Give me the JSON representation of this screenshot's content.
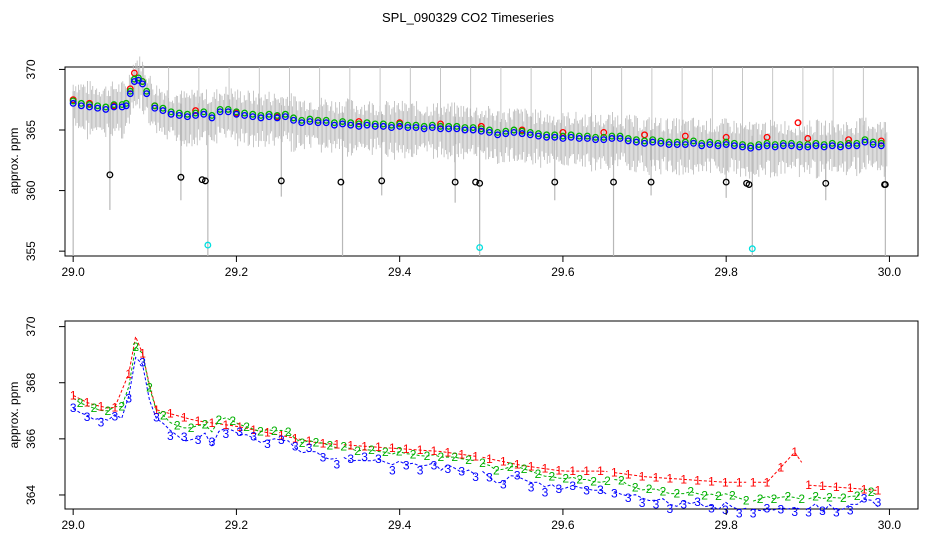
{
  "title": "SPL_090329  CO2 Timeseries",
  "colors": {
    "grey": "#b8b8b8",
    "black": "#000000",
    "red": "#ff0000",
    "green": "#00b000",
    "blue": "#0000ff",
    "cyan": "#00e0e0"
  },
  "chart_data": [
    {
      "type": "scatter",
      "ylabel": "approx. ppm",
      "xlim": [
        28.99,
        30.035
      ],
      "ylim": [
        354.6,
        370.2
      ],
      "xticks": [
        29.0,
        29.2,
        29.4,
        29.6,
        29.8,
        30.0
      ],
      "xtick_labels": [
        "29.0",
        "29.2",
        "29.4",
        "29.6",
        "29.8",
        "30.0"
      ],
      "yticks": [
        355,
        360,
        365,
        370
      ],
      "ytick_labels": [
        "355",
        "360",
        "365",
        "370"
      ],
      "series": [
        {
          "name": "grey band (high-rate data)",
          "color": "grey"
        },
        {
          "name": "black",
          "color": "black",
          "marker": "circle"
        },
        {
          "name": "red",
          "color": "red",
          "marker": "circle"
        },
        {
          "name": "green",
          "color": "green",
          "marker": "circle"
        },
        {
          "name": "blue",
          "color": "blue",
          "marker": "circle"
        },
        {
          "name": "cyan",
          "color": "cyan",
          "marker": "circle"
        }
      ],
      "black_points": [
        [
          29.045,
          361.3
        ],
        [
          29.132,
          361.1
        ],
        [
          29.158,
          360.9
        ],
        [
          29.162,
          360.8
        ],
        [
          29.255,
          360.8
        ],
        [
          29.328,
          360.7
        ],
        [
          29.378,
          360.8
        ],
        [
          29.468,
          360.7
        ],
        [
          29.493,
          360.7
        ],
        [
          29.498,
          360.6
        ],
        [
          29.59,
          360.7
        ],
        [
          29.662,
          360.7
        ],
        [
          29.708,
          360.7
        ],
        [
          29.8,
          360.7
        ],
        [
          29.825,
          360.6
        ],
        [
          29.828,
          360.5
        ],
        [
          29.922,
          360.6
        ],
        [
          29.994,
          360.5
        ],
        [
          29.995,
          360.5
        ]
      ],
      "cyan_points": [
        [
          29.165,
          355.5
        ],
        [
          29.498,
          355.3
        ],
        [
          29.832,
          355.2
        ]
      ],
      "red_points": [
        [
          29.0,
          367.5
        ],
        [
          29.02,
          367.2
        ],
        [
          29.05,
          367.0
        ],
        [
          29.07,
          368.4
        ],
        [
          29.075,
          369.7
        ],
        [
          29.085,
          369.0
        ],
        [
          29.1,
          367.0
        ],
        [
          29.15,
          366.6
        ],
        [
          29.2,
          366.4
        ],
        [
          29.25,
          366.1
        ],
        [
          29.3,
          365.8
        ],
        [
          29.35,
          365.7
        ],
        [
          29.4,
          365.6
        ],
        [
          29.45,
          365.5
        ],
        [
          29.5,
          365.3
        ],
        [
          29.55,
          365.0
        ],
        [
          29.6,
          364.8
        ],
        [
          29.65,
          364.8
        ],
        [
          29.7,
          364.6
        ],
        [
          29.75,
          364.5
        ],
        [
          29.8,
          364.4
        ],
        [
          29.85,
          364.4
        ],
        [
          29.888,
          365.6
        ],
        [
          29.9,
          364.3
        ],
        [
          29.95,
          364.2
        ],
        [
          29.99,
          364.1
        ]
      ],
      "blue_points": [
        [
          29.0,
          367.2
        ],
        [
          29.01,
          367.0
        ],
        [
          29.02,
          366.9
        ],
        [
          29.03,
          366.8
        ],
        [
          29.04,
          366.7
        ],
        [
          29.05,
          366.9
        ],
        [
          29.06,
          366.9
        ],
        [
          29.065,
          367.0
        ],
        [
          29.07,
          368.0
        ],
        [
          29.075,
          369.0
        ],
        [
          29.08,
          369.1
        ],
        [
          29.085,
          368.8
        ],
        [
          29.09,
          368.0
        ],
        [
          29.1,
          366.8
        ],
        [
          29.11,
          366.6
        ],
        [
          29.12,
          366.3
        ],
        [
          29.13,
          366.2
        ],
        [
          29.14,
          366.1
        ],
        [
          29.15,
          366.2
        ],
        [
          29.16,
          366.3
        ],
        [
          29.17,
          366.0
        ],
        [
          29.18,
          366.5
        ],
        [
          29.19,
          366.5
        ],
        [
          29.2,
          366.3
        ],
        [
          29.21,
          366.2
        ],
        [
          29.22,
          366.1
        ],
        [
          29.23,
          366.0
        ],
        [
          29.24,
          366.1
        ],
        [
          29.25,
          366.0
        ],
        [
          29.26,
          366.1
        ],
        [
          29.27,
          365.8
        ],
        [
          29.28,
          365.6
        ],
        [
          29.29,
          365.7
        ],
        [
          29.3,
          365.6
        ],
        [
          29.31,
          365.6
        ],
        [
          29.32,
          365.4
        ],
        [
          29.33,
          365.5
        ],
        [
          29.34,
          365.4
        ],
        [
          29.35,
          365.3
        ],
        [
          29.36,
          365.4
        ],
        [
          29.37,
          365.3
        ],
        [
          29.38,
          365.3
        ],
        [
          29.39,
          365.2
        ],
        [
          29.4,
          365.3
        ],
        [
          29.41,
          365.2
        ],
        [
          29.42,
          365.2
        ],
        [
          29.43,
          365.1
        ],
        [
          29.44,
          365.2
        ],
        [
          29.45,
          365.1
        ],
        [
          29.46,
          365.1
        ],
        [
          29.47,
          365.1
        ],
        [
          29.48,
          365.0
        ],
        [
          29.49,
          365.0
        ],
        [
          29.5,
          364.9
        ],
        [
          29.51,
          364.8
        ],
        [
          29.52,
          364.6
        ],
        [
          29.53,
          364.7
        ],
        [
          29.54,
          364.8
        ],
        [
          29.55,
          364.7
        ],
        [
          29.56,
          364.6
        ],
        [
          29.57,
          364.5
        ],
        [
          29.58,
          364.4
        ],
        [
          29.59,
          364.4
        ],
        [
          29.6,
          364.3
        ],
        [
          29.61,
          364.4
        ],
        [
          29.62,
          364.3
        ],
        [
          29.63,
          364.3
        ],
        [
          29.64,
          364.2
        ],
        [
          29.65,
          364.2
        ],
        [
          29.66,
          364.3
        ],
        [
          29.67,
          364.3
        ],
        [
          29.68,
          364.1
        ],
        [
          29.69,
          364.0
        ],
        [
          29.7,
          363.9
        ],
        [
          29.71,
          364.0
        ],
        [
          29.72,
          363.9
        ],
        [
          29.73,
          363.8
        ],
        [
          29.74,
          363.8
        ],
        [
          29.75,
          363.8
        ],
        [
          29.76,
          363.9
        ],
        [
          29.77,
          363.7
        ],
        [
          29.78,
          363.8
        ],
        [
          29.79,
          363.7
        ],
        [
          29.8,
          363.8
        ],
        [
          29.81,
          363.7
        ],
        [
          29.82,
          363.6
        ],
        [
          29.83,
          363.5
        ],
        [
          29.84,
          363.6
        ],
        [
          29.85,
          363.7
        ],
        [
          29.86,
          363.6
        ],
        [
          29.87,
          363.7
        ],
        [
          29.88,
          363.7
        ],
        [
          29.89,
          363.6
        ],
        [
          29.9,
          363.6
        ],
        [
          29.91,
          363.7
        ],
        [
          29.92,
          363.6
        ],
        [
          29.93,
          363.7
        ],
        [
          29.94,
          363.6
        ],
        [
          29.95,
          363.7
        ],
        [
          29.96,
          363.7
        ],
        [
          29.97,
          364.0
        ],
        [
          29.98,
          363.8
        ],
        [
          29.99,
          363.7
        ]
      ]
    },
    {
      "type": "line",
      "ylabel": "approx. ppm",
      "xlim": [
        28.99,
        30.035
      ],
      "ylim": [
        363.5,
        370.2
      ],
      "xticks": [
        29.0,
        29.2,
        29.4,
        29.6,
        29.8,
        30.0
      ],
      "xtick_labels": [
        "29.0",
        "29.2",
        "29.4",
        "29.6",
        "29.8",
        "30.0"
      ],
      "yticks": [
        364,
        366,
        368,
        370
      ],
      "ytick_labels": [
        "364",
        "366",
        "368",
        "370"
      ],
      "series": [
        {
          "name": "1",
          "label": "1",
          "color": "red",
          "style": "dashed, numeral markers"
        },
        {
          "name": "2",
          "label": "2",
          "color": "green",
          "style": "dashed, numeral markers"
        },
        {
          "name": "3",
          "label": "3",
          "color": "blue",
          "style": "dashed, numeral markers"
        }
      ],
      "gaps": [
        29.33,
        29.5,
        29.66,
        29.83,
        29.9
      ]
    }
  ]
}
